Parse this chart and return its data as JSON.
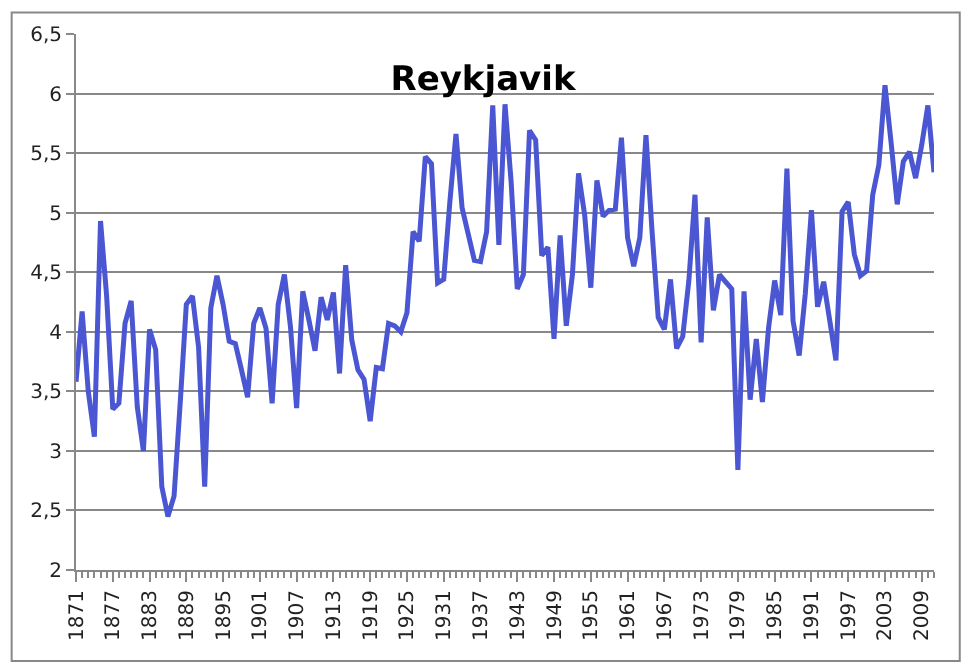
{
  "chart_data": {
    "type": "line",
    "title": "Reykjavik",
    "x": [
      1871,
      1872,
      1873,
      1874,
      1875,
      1876,
      1877,
      1878,
      1879,
      1880,
      1881,
      1882,
      1883,
      1884,
      1885,
      1886,
      1887,
      1888,
      1889,
      1890,
      1891,
      1892,
      1893,
      1894,
      1895,
      1896,
      1897,
      1898,
      1899,
      1900,
      1901,
      1902,
      1903,
      1904,
      1905,
      1906,
      1907,
      1908,
      1909,
      1910,
      1911,
      1912,
      1913,
      1914,
      1915,
      1916,
      1917,
      1918,
      1919,
      1920,
      1921,
      1922,
      1923,
      1924,
      1925,
      1926,
      1927,
      1928,
      1929,
      1930,
      1931,
      1932,
      1933,
      1934,
      1935,
      1936,
      1937,
      1938,
      1939,
      1940,
      1941,
      1942,
      1943,
      1944,
      1945,
      1946,
      1947,
      1948,
      1949,
      1950,
      1951,
      1952,
      1953,
      1954,
      1955,
      1956,
      1957,
      1958,
      1959,
      1960,
      1961,
      1962,
      1963,
      1964,
      1965,
      1966,
      1967,
      1968,
      1969,
      1970,
      1971,
      1972,
      1973,
      1974,
      1975,
      1976,
      1977,
      1978,
      1979,
      1980,
      1981,
      1982,
      1983,
      1984,
      1985,
      1986,
      1987,
      1988,
      1989,
      1990,
      1991,
      1992,
      1993,
      1994,
      1995,
      1996,
      1997,
      1998,
      1999,
      2000,
      2001,
      2002,
      2003,
      2004,
      2005,
      2006,
      2007,
      2008,
      2009,
      2010,
      2011
    ],
    "series": [
      {
        "color": "#4b56d2",
        "values": [
          3.58,
          4.17,
          3.5,
          3.12,
          4.93,
          4.3,
          3.35,
          3.4,
          4.07,
          4.26,
          3.37,
          3.0,
          4.02,
          3.85,
          2.7,
          2.45,
          2.62,
          3.4,
          4.23,
          4.3,
          3.87,
          2.7,
          4.2,
          4.47,
          4.23,
          3.92,
          3.9,
          3.68,
          3.45,
          4.07,
          4.2,
          4.03,
          3.4,
          4.23,
          4.48,
          4.04,
          3.36,
          4.34,
          4.1,
          3.84,
          4.29,
          4.1,
          4.33,
          3.65,
          4.56,
          3.93,
          3.68,
          3.6,
          3.25,
          3.7,
          3.69,
          4.07,
          4.05,
          4.0,
          4.16,
          4.84,
          4.76,
          5.47,
          5.41,
          4.41,
          4.44,
          5.09,
          5.66,
          5.04,
          4.82,
          4.6,
          4.59,
          4.84,
          5.9,
          4.73,
          5.91,
          5.26,
          4.36,
          4.48,
          5.69,
          5.61,
          4.64,
          4.71,
          3.94,
          4.81,
          4.05,
          4.48,
          5.33,
          4.98,
          4.37,
          5.27,
          4.97,
          5.02,
          5.03,
          5.63,
          4.79,
          4.55,
          4.79,
          5.65,
          4.84,
          4.12,
          4.02,
          4.44,
          3.86,
          3.96,
          4.43,
          5.15,
          3.91,
          4.96,
          4.18,
          4.48,
          4.42,
          4.36,
          2.84,
          4.34,
          3.43,
          3.94,
          3.41,
          4.03,
          4.43,
          4.14,
          5.37,
          4.09,
          3.8,
          4.32,
          5.02,
          4.21,
          4.42,
          4.09,
          3.76,
          5.01,
          5.09,
          4.65,
          4.47,
          4.51,
          5.15,
          5.4,
          6.07,
          5.59,
          5.07,
          5.43,
          5.51,
          5.29,
          5.57,
          5.9,
          5.34
        ]
      }
    ],
    "xlim": [
      1871,
      2011
    ],
    "xticks": [
      1871,
      1877,
      1883,
      1889,
      1895,
      1901,
      1907,
      1913,
      1919,
      1925,
      1931,
      1937,
      1943,
      1949,
      1955,
      1961,
      1967,
      1973,
      1979,
      1985,
      1991,
      1997,
      2003,
      2009
    ],
    "ylim": [
      2,
      6.5
    ],
    "yticks": [
      2,
      {
        "value": 2.5,
        "label": "2,5"
      },
      3,
      {
        "value": 3.5,
        "label": "3,5"
      },
      4,
      {
        "value": 4.5,
        "label": "4,5"
      },
      5,
      {
        "value": 5.5,
        "label": "5,5"
      },
      6,
      {
        "value": 6.5,
        "label": "6,5"
      }
    ],
    "grid": "y",
    "legend": false,
    "marker": "none",
    "line_style": "solid"
  }
}
